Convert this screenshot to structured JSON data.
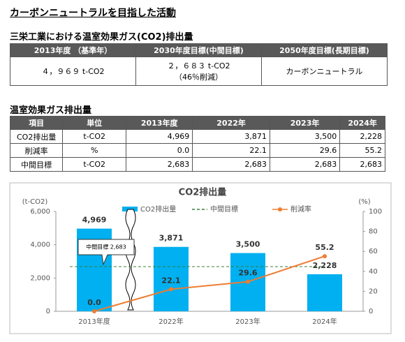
{
  "title": "カーボンニュートラルを目指した活動",
  "section1": {
    "heading": "三栄工業における温室効果ガス(CO2)排出量",
    "table": {
      "headers": [
        "2013年度 （基準年）",
        "2030年度目標(中間目標)",
        "2050年度目標(長期目標)"
      ],
      "rows": [
        [
          "４，９６９ t-CO2",
          "２，６８３ t-CO2",
          "カーボンニュートラル"
        ]
      ],
      "note": "（46％削減）"
    }
  },
  "section2": {
    "heading": "温室効果ガス排出量",
    "table": {
      "headers": [
        "項目",
        "単位",
        "2013年度",
        "2022年",
        "2023年",
        "2024年"
      ],
      "rows": [
        [
          "CO2排出量",
          "t-CO2",
          "4,969",
          "3,871",
          "3,500",
          "2,228"
        ],
        [
          "削減率",
          "%",
          "0.0",
          "22.1",
          "29.6",
          "55.2"
        ],
        [
          "中間目標",
          "t-CO2",
          "2,683",
          "2,683",
          "2,683",
          "2,683"
        ]
      ]
    }
  },
  "chart_data": {
    "type": "bar",
    "title": "CO2排出量",
    "y_label": "(t-CO2)",
    "y2_label": "(%)",
    "categories": [
      "2013年度",
      "2022年",
      "2023年",
      "2024年"
    ],
    "series": [
      {
        "name": "CO2排出量",
        "type": "bar",
        "color": "#00b0f0",
        "values": [
          4969,
          3871,
          3500,
          2228
        ],
        "value_labels": [
          "4,969",
          "3,871",
          "3,500",
          "2,228"
        ]
      },
      {
        "name": "中間目標",
        "type": "line",
        "dashed": true,
        "color": "#3a7d3a",
        "values": [
          2683,
          2683,
          2683,
          2683
        ]
      },
      {
        "name": "削減率",
        "type": "line",
        "axis": "y2",
        "color": "#ed7d31",
        "values": [
          0,
          22.1,
          29.6,
          55.2
        ],
        "value_labels": [
          "0.0",
          "22.1",
          "29.6",
          "55.2"
        ]
      }
    ],
    "ylim": [
      0,
      6000
    ],
    "yticks": [
      0,
      {
        "value": 2000,
        "label": "2,000"
      },
      {
        "value": 4000,
        "label": "4,000"
      },
      {
        "value": 6000,
        "label": "6,000"
      }
    ],
    "y2lim": [
      0,
      100
    ],
    "y2ticks": [
      0,
      20,
      40,
      60,
      80,
      100
    ],
    "grid": false,
    "legend": "top",
    "annotations": [
      {
        "text": "中間目標 2,683"
      }
    ]
  }
}
